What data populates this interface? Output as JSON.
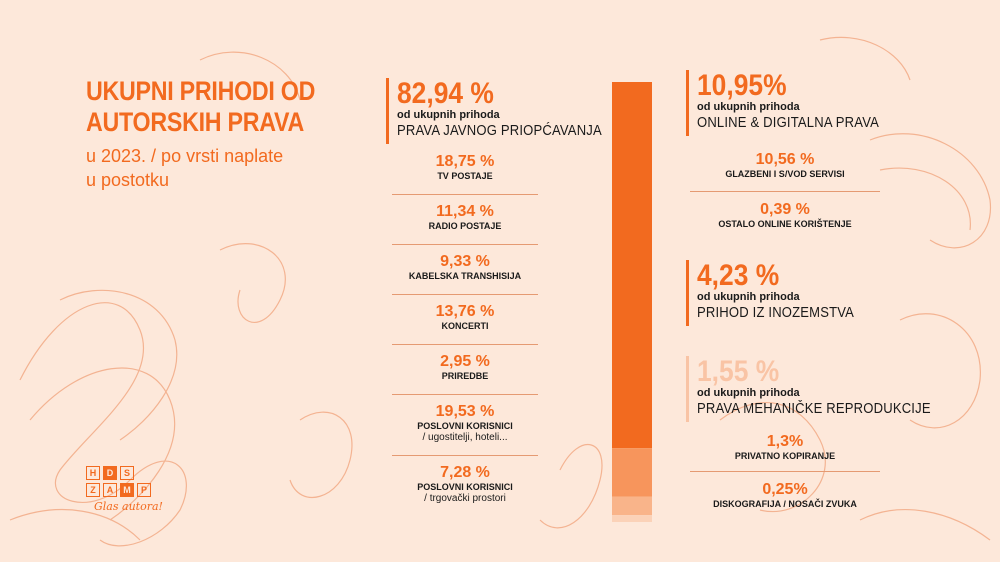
{
  "title": {
    "main_line1": "UKUPNI PRIHODI OD",
    "main_line2": "AUTORSKIH PRAVA",
    "sub_line1": "u 2023. / po vrsti naplate",
    "sub_line2": "u postotku"
  },
  "logo": {
    "row1": [
      "H",
      "D",
      "S"
    ],
    "row2": [
      "Z",
      "A",
      "M",
      "P"
    ],
    "slogan": "Glas autora!"
  },
  "left_group": {
    "pct": "82,94 %",
    "of_total": "od ukupnih prihoda",
    "category": "PRAVA JAVNOG PRIOPĆAVANJA",
    "items": [
      {
        "pct": "18,75 %",
        "label": "TV POSTAJE",
        "note": ""
      },
      {
        "pct": "11,34 %",
        "label": "RADIO POSTAJE",
        "note": ""
      },
      {
        "pct": "9,33 %",
        "label": "KABELSKA TRANSHISIJA",
        "note": ""
      },
      {
        "pct": "13,76 %",
        "label": "KONCERTI",
        "note": ""
      },
      {
        "pct": "2,95 %",
        "label": "PRIREDBE",
        "note": ""
      },
      {
        "pct": "19,53 %",
        "label": "POSLOVNI KORISNICI",
        "note": "/ ugostitelji, hoteli..."
      },
      {
        "pct": "7,28 %",
        "label": "POSLOVNI KORISNICI",
        "note": "/ trgovački prostori"
      }
    ]
  },
  "right_groups": [
    {
      "pct": "10,95%",
      "of_total": "od ukupnih prihoda",
      "category": "ONLINE & DIGITALNA PRAVA",
      "items": [
        {
          "pct": "10,56 %",
          "label": "GLAZBENI I S/VOD SERVISI"
        },
        {
          "pct": "0,39 %",
          "label": "OSTALO ONLINE KORIŠTENJE"
        }
      ]
    },
    {
      "pct": "4,23 %",
      "of_total": "od ukupnih prihoda",
      "category": "PRIHOD IZ INOZEMSTVA",
      "items": []
    },
    {
      "pct": "1,55 %",
      "of_total": "od ukupnih prihoda",
      "category": "PRAVA MEHANIČKE REPRODUKCIJE",
      "items": [
        {
          "pct": "1,3%",
          "label": "PRIVATNO KOPIRANJE"
        },
        {
          "pct": "0,25%",
          "label": "DISKOGRAFIJA / NOSAČI ZVUKA"
        }
      ]
    }
  ],
  "chart_data": {
    "type": "bar",
    "orientation": "vertical-stacked",
    "categories": [
      "PRAVA JAVNOG PRIOPĆAVANJA",
      "ONLINE & DIGITALNA PRAVA",
      "PRIHOD IZ INOZEMSTVA",
      "PRAVA MEHANIČKE REPRODUKCIJE"
    ],
    "values": [
      82.94,
      10.95,
      4.23,
      1.55
    ],
    "colors": [
      "#f26a1f",
      "#f7955c",
      "#f9b48a",
      "#fbd2b8"
    ],
    "ylim": [
      0,
      100
    ]
  },
  "colors": {
    "background": "#fde8da",
    "accent": "#f26a1f",
    "light_accent": "#f9c4a5"
  }
}
